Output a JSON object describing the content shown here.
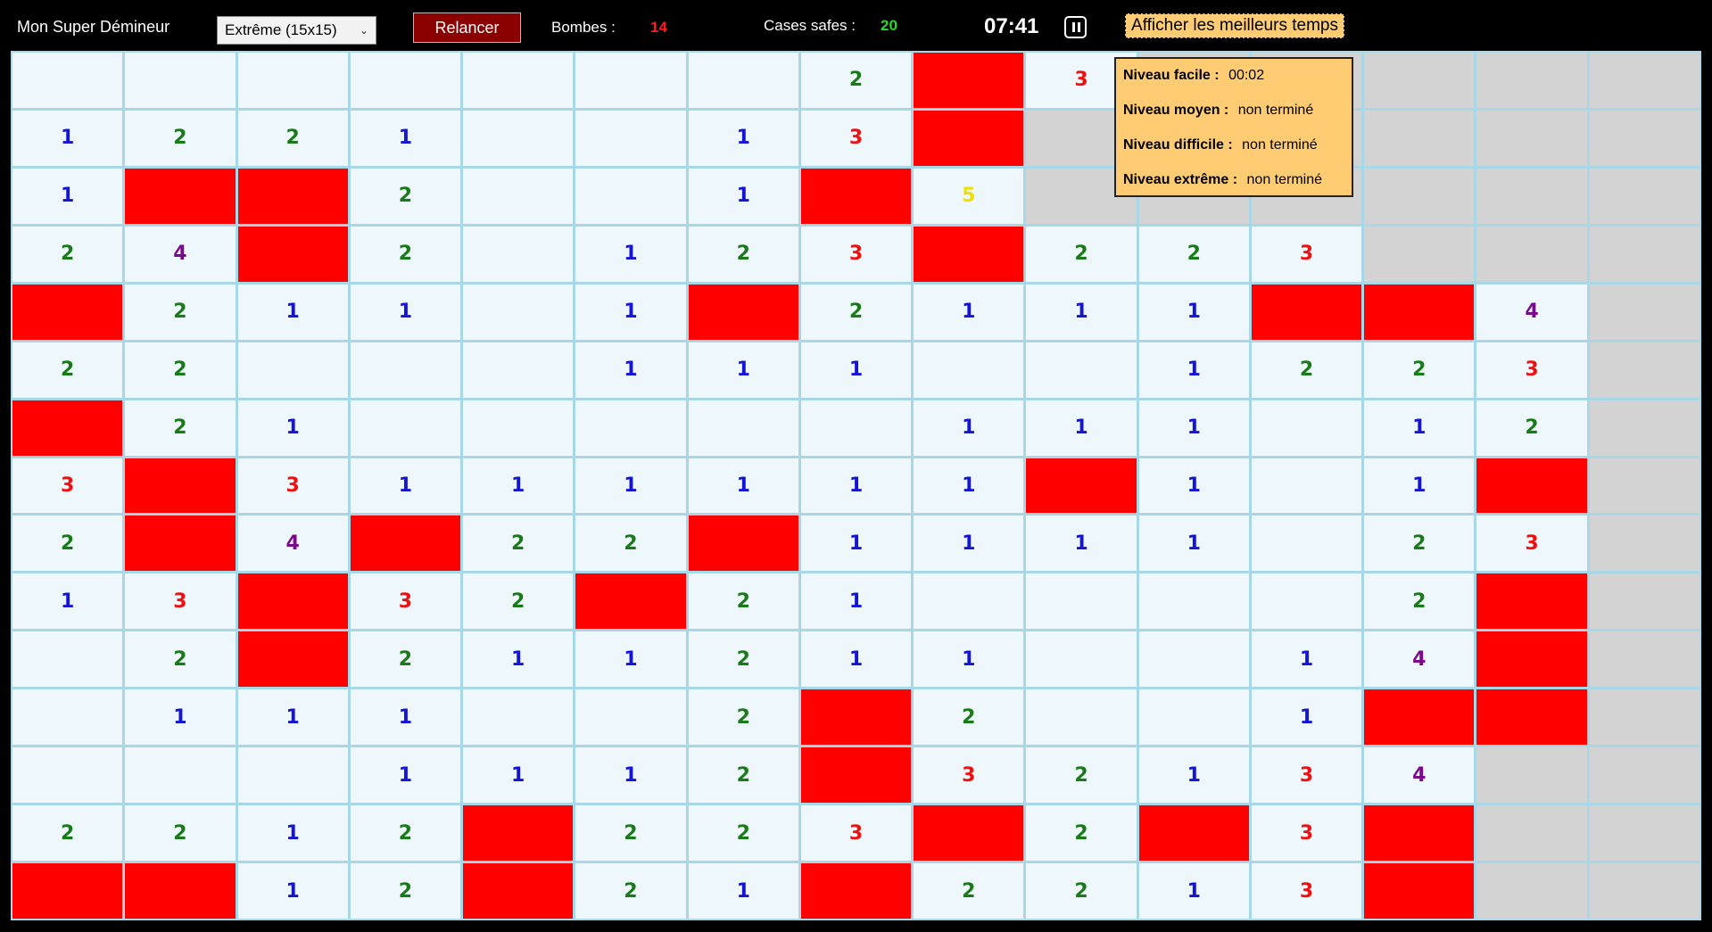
{
  "header": {
    "app_title": "Mon Super Démineur",
    "level_selected": "Extrême (15x15)",
    "restart_label": "Relancer",
    "bombs_label": "Bombes :",
    "bombs_value": "14",
    "safe_label": "Cases safes :",
    "safe_value": "20",
    "timer": "07:41",
    "best_times_label": "Afficher les meilleurs temps"
  },
  "best_times": {
    "easy_label": "Niveau facile :",
    "easy_value": "00:02",
    "medium_label": "Niveau moyen :",
    "medium_value": "non terminé",
    "hard_label": "Niveau difficile :",
    "hard_value": "non terminé",
    "extreme_label": "Niveau extrême :",
    "extreme_value": "non terminé"
  },
  "board": {
    "cols": 15,
    "rows": 15,
    "legend": "'' empty revealed, '1'-'8' number, 'M' mine, 'H' hidden",
    "grid": [
      [
        "",
        "",
        "",
        "",
        "",
        "",
        "",
        "2",
        "M",
        "3",
        "H",
        "H",
        "H",
        "H",
        "H"
      ],
      [
        "1",
        "2",
        "2",
        "1",
        "",
        "",
        "1",
        "3",
        "M",
        "H",
        "H",
        "H",
        "H",
        "H",
        "H"
      ],
      [
        "1",
        "M",
        "M",
        "2",
        "",
        "",
        "1",
        "M",
        "5",
        "H",
        "H",
        "H",
        "H",
        "H",
        "H"
      ],
      [
        "2",
        "4",
        "M",
        "2",
        "",
        "1",
        "2",
        "3",
        "M",
        "2",
        "2",
        "3",
        "H",
        "H",
        "H"
      ],
      [
        "M",
        "2",
        "1",
        "1",
        "",
        "1",
        "M",
        "2",
        "1",
        "1",
        "1",
        "M",
        "M",
        "4",
        "H"
      ],
      [
        "2",
        "2",
        "",
        "",
        "",
        "1",
        "1",
        "1",
        "",
        "",
        "1",
        "2",
        "2",
        "3",
        "H"
      ],
      [
        "M",
        "2",
        "1",
        "",
        "",
        "",
        "",
        "",
        "1",
        "1",
        "1",
        "",
        "1",
        "2",
        "H"
      ],
      [
        "3",
        "M",
        "3",
        "1",
        "1",
        "1",
        "1",
        "1",
        "1",
        "M",
        "1",
        "",
        "1",
        "M",
        "H"
      ],
      [
        "2",
        "M",
        "4",
        "M",
        "2",
        "2",
        "M",
        "1",
        "1",
        "1",
        "1",
        "",
        "2",
        "3",
        "H"
      ],
      [
        "1",
        "3",
        "M",
        "3",
        "2",
        "M",
        "2",
        "1",
        "",
        "",
        "",
        "",
        "2",
        "M",
        "H"
      ],
      [
        "",
        "2",
        "M",
        "2",
        "1",
        "1",
        "2",
        "1",
        "1",
        "",
        "",
        "1",
        "4",
        "M",
        "H"
      ],
      [
        "",
        "1",
        "1",
        "1",
        "",
        "",
        "2",
        "M",
        "2",
        "",
        "",
        "1",
        "M",
        "M",
        "H"
      ],
      [
        "",
        "",
        "",
        "1",
        "1",
        "1",
        "2",
        "M",
        "3",
        "2",
        "1",
        "3",
        "4",
        "H",
        "H"
      ],
      [
        "2",
        "2",
        "1",
        "2",
        "M",
        "2",
        "2",
        "3",
        "M",
        "2",
        "M",
        "3",
        "M",
        "H",
        "H"
      ],
      [
        "M",
        "M",
        "1",
        "2",
        "M",
        "2",
        "1",
        "M",
        "2",
        "2",
        "1",
        "3",
        "M",
        "H",
        "H"
      ]
    ]
  },
  "colors": {
    "mine": "#ff0000",
    "hidden": "#d3d3d3",
    "revealed": "#eef7fc",
    "restart_button": "#8b0000",
    "best_times_panel": "#ffcc73"
  }
}
